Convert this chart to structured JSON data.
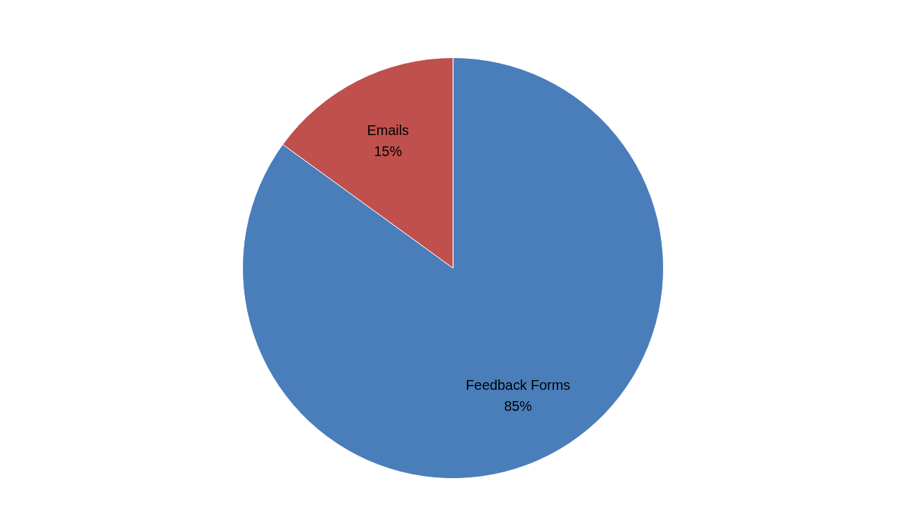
{
  "chart_data": {
    "type": "pie",
    "categories": [
      "Feedback Forms",
      "Emails"
    ],
    "values": [
      85,
      15
    ],
    "colors": [
      "#4a7ebb",
      "#c0504d"
    ],
    "value_labels": [
      "85%",
      "15%"
    ]
  }
}
